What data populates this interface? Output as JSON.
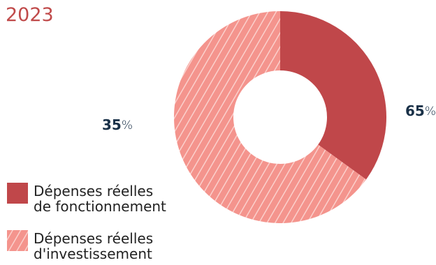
{
  "chart_data": {
    "type": "pie",
    "title": "2023",
    "categories": [
      "Dépenses réelles de fonctionnement",
      "Dépenses réelles d'investissement"
    ],
    "legend_lines": [
      [
        "Dépenses réelles",
        "de fonctionnement"
      ],
      [
        "Dépenses réelles",
        "d'investissement"
      ]
    ],
    "values": [
      35,
      65
    ],
    "unit": "%",
    "colors": [
      "#c0474a",
      "#f4948d"
    ],
    "hatched": [
      false,
      true
    ],
    "donut": true
  }
}
